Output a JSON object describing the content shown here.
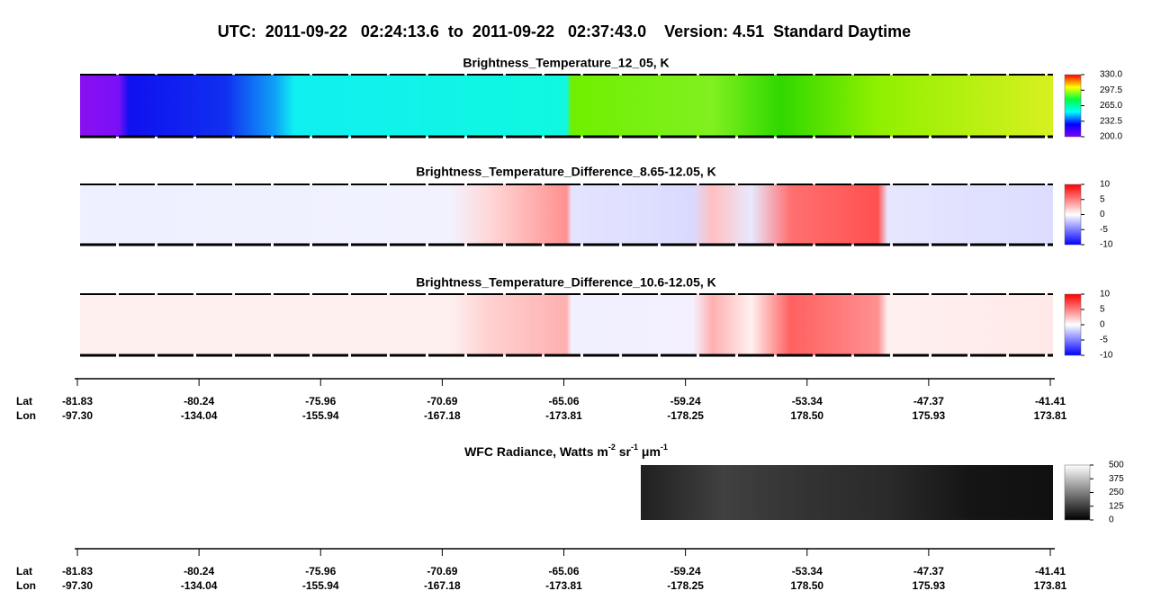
{
  "title": "UTC:  2011-09-22   02:24:13.6  to  2011-09-22   02:37:43.0    Version: 4.51  Standard Daytime",
  "along_track_axis": {
    "row_labels": [
      "Lat",
      "Lon"
    ],
    "lat": [
      "-81.83",
      "-80.24",
      "-75.96",
      "-70.69",
      "-65.06",
      "-59.24",
      "-53.34",
      "-47.37",
      "-41.41"
    ],
    "lon": [
      "-97.30",
      "-134.04",
      "-155.94",
      "-167.18",
      "-173.81",
      "-178.25",
      "178.50",
      "175.93",
      "173.81"
    ]
  },
  "chart_data": [
    {
      "type": "heatmap",
      "title": "Brightness_Temperature_12_05, K",
      "colormap": "rainbow",
      "clim": [
        200,
        330
      ],
      "cticks": [
        {
          "value": 330,
          "label": "330.0"
        },
        {
          "value": 297.5,
          "label": "297.5"
        },
        {
          "value": 265,
          "label": "265.0"
        },
        {
          "value": 232.5,
          "label": "232.5"
        },
        {
          "value": 200,
          "label": "200.0"
        }
      ]
    },
    {
      "type": "heatmap",
      "title": "Brightness_Temperature_Difference_8.65-12.05, K",
      "colormap": "bwr",
      "clim": [
        -10,
        10
      ],
      "cticks": [
        10,
        5,
        0,
        -5,
        -10
      ]
    },
    {
      "type": "heatmap",
      "title": "Brightness_Temperature_Difference_10.6-12.05, K",
      "colormap": "bwr",
      "clim": [
        -10,
        10
      ],
      "cticks": [
        10,
        5,
        0,
        -5,
        -10
      ]
    },
    {
      "type": "heatmap",
      "title_parts": [
        "WFC Radiance, Watts m",
        "-2",
        " sr",
        "-1",
        " μm",
        "-1"
      ],
      "colormap": "gray",
      "clim": [
        0,
        500
      ],
      "cticks": [
        500,
        375,
        250,
        125,
        0
      ]
    }
  ]
}
